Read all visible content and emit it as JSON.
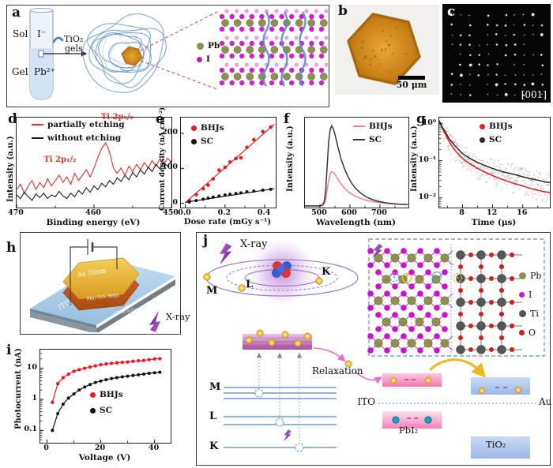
{
  "panels": {
    "a": {
      "letter": "a",
      "sol": "Sol",
      "iodide": "I⁻",
      "tio2": "TiO₂",
      "gels": "gels",
      "gel": "Gel",
      "lead": "Pb²⁺",
      "legend": [
        {
          "label": "Pb",
          "color": "#8f8f52"
        },
        {
          "label": "I",
          "color": "#cc10cc"
        }
      ]
    },
    "b": {
      "letter": "b",
      "scale_bar": "50 μm"
    },
    "c": {
      "letter": "c",
      "zone_axis": "[001]"
    },
    "d": {
      "letter": "d"
    },
    "e": {
      "letter": "e"
    },
    "f": {
      "letter": "f"
    },
    "g": {
      "letter": "g"
    },
    "h": {
      "letter": "h",
      "au_label": "Au 50nm",
      "bhj_label": "PbI₂-TiO₂ BHJs",
      "ito_label": "ITO",
      "substrate_label": "Glass substrate",
      "xray_label": "X-ray"
    },
    "i": {
      "letter": "i"
    },
    "j": {
      "letter": "j",
      "xray_label": "X-ray",
      "shell_k": "K",
      "shell_l": "L",
      "shell_m": "M",
      "level_m": "M",
      "level_l": "L",
      "level_k": "K",
      "relaxation": "Relaxation",
      "ito": "ITO",
      "au": "Au",
      "pbi2": "PbI₂",
      "tio2": "TiO₂",
      "legend": [
        {
          "label": "Pb",
          "color": "#8f8f52"
        },
        {
          "label": "I",
          "color": "#cc10cc"
        },
        {
          "label": "Ti",
          "color": "#555555"
        },
        {
          "label": "O",
          "color": "#cc2020"
        }
      ]
    }
  },
  "chart_data": [
    {
      "id": "d",
      "type": "line",
      "xlabel": "Binding energy (eV)",
      "ylabel": "Intensity (a.u.)",
      "xrange": [
        470,
        450
      ],
      "yrange": [
        0,
        1
      ],
      "x_start": 470,
      "x_step": -0.5,
      "xticks": [
        {
          "v": 470,
          "t": "470"
        },
        {
          "v": 460,
          "t": "460"
        },
        {
          "v": 450,
          "t": "450"
        }
      ],
      "xminor": [
        465,
        455
      ],
      "annotations": [
        {
          "x": 464.3,
          "y": 0.47,
          "t": "Ti 2p₁/₂",
          "color": "#e03030"
        },
        {
          "x": 456.9,
          "y": 0.95,
          "t": "Ti 2p₃/₂",
          "color": "#e03030"
        }
      ],
      "legend_style": "line",
      "series": [
        {
          "name": "partially etching",
          "color": "#e03030",
          "lw": 1.1,
          "values": [
            0.2,
            0.26,
            0.16,
            0.24,
            0.3,
            0.2,
            0.28,
            0.22,
            0.32,
            0.24,
            0.3,
            0.36,
            0.28,
            0.34,
            0.26,
            0.38,
            0.3,
            0.36,
            0.42,
            0.34,
            0.44,
            0.56,
            0.66,
            0.72,
            0.62,
            0.44,
            0.38,
            0.44,
            0.36,
            0.46,
            0.4,
            0.48,
            0.42,
            0.5,
            0.44,
            0.52,
            0.46,
            0.54,
            0.48,
            0.55,
            0.5
          ]
        },
        {
          "name": "without etching",
          "color": "#1a1a1a",
          "lw": 1.1,
          "values": [
            0.14,
            0.1,
            0.17,
            0.12,
            0.08,
            0.15,
            0.11,
            0.16,
            0.1,
            0.14,
            0.12,
            0.18,
            0.13,
            0.1,
            0.16,
            0.12,
            0.19,
            0.15,
            0.22,
            0.17,
            0.24,
            0.2,
            0.27,
            0.23,
            0.3,
            0.26,
            0.33,
            0.29,
            0.36,
            0.31,
            0.39,
            0.34,
            0.42,
            0.37,
            0.45,
            0.4,
            0.48,
            0.43,
            0.5,
            0.46,
            0.52
          ]
        }
      ]
    },
    {
      "id": "e",
      "type": "scatter",
      "xlabel": "Dose rate (mGy s⁻¹)",
      "ylabel": "Current density (nA cm⁻²)",
      "xrange": [
        -0.022,
        0.455
      ],
      "yrange": [
        -12,
        245
      ],
      "xticks": [
        {
          "v": 0,
          "t": "0.0"
        },
        {
          "v": 0.2,
          "t": "0.2"
        },
        {
          "v": 0.4,
          "t": "0.4"
        }
      ],
      "xminor": [
        0.1,
        0.3
      ],
      "yticks": [
        {
          "v": 0,
          "t": "0"
        },
        {
          "v": 100,
          "t": "100"
        },
        {
          "v": 200,
          "t": "200"
        }
      ],
      "legend_style": "dot",
      "series": [
        {
          "name": "BHJs",
          "color": "#e81c24",
          "draw": "dots",
          "r": 2.3,
          "fit": [
            [
              0,
              2
            ],
            [
              0.448,
              226
            ]
          ],
          "points": [
            [
              0.02,
              8
            ],
            [
              0.055,
              25
            ],
            [
              0.09,
              42
            ],
            [
              0.115,
              52
            ],
            [
              0.14,
              70
            ],
            [
              0.17,
              95
            ],
            [
              0.2,
              103
            ],
            [
              0.225,
              118
            ],
            [
              0.255,
              128
            ],
            [
              0.28,
              130
            ],
            [
              0.31,
              160
            ],
            [
              0.345,
              182
            ],
            [
              0.39,
              205
            ],
            [
              0.43,
              218
            ]
          ]
        },
        {
          "name": "SC",
          "color": "#111111",
          "draw": "dots",
          "r": 2,
          "fit": [
            [
              0,
              3
            ],
            [
              0.448,
              42
            ]
          ],
          "points": [
            [
              0.02,
              4
            ],
            [
              0.055,
              8
            ],
            [
              0.09,
              12
            ],
            [
              0.115,
              15
            ],
            [
              0.14,
              18
            ],
            [
              0.17,
              21
            ],
            [
              0.2,
              24
            ],
            [
              0.225,
              26
            ],
            [
              0.255,
              28
            ],
            [
              0.28,
              30
            ],
            [
              0.31,
              33
            ],
            [
              0.345,
              35
            ],
            [
              0.39,
              38
            ],
            [
              0.43,
              40
            ]
          ]
        }
      ]
    },
    {
      "id": "f",
      "type": "line",
      "xlabel": "Wavelength (nm)",
      "ylabel": "Intensity (a.u.)",
      "xrange": [
        450,
        795
      ],
      "yrange": [
        0,
        1.1
      ],
      "xticks": [
        {
          "v": 500,
          "t": "500"
        },
        {
          "v": 600,
          "t": "600"
        },
        {
          "v": 700,
          "t": "700"
        }
      ],
      "xminor": [
        550,
        650,
        750
      ],
      "legend_style": "line",
      "series": [
        {
          "name": "BHJs",
          "color": "#ef8086",
          "lw": 1.5,
          "points": [
            [
              450,
              0.018
            ],
            [
              480,
              0.018
            ],
            [
              500,
              0.018
            ],
            [
              508,
              0.025
            ],
            [
              514,
              0.045
            ],
            [
              519,
              0.1
            ],
            [
              524,
              0.22
            ],
            [
              529,
              0.33
            ],
            [
              534,
              0.41
            ],
            [
              539,
              0.44
            ],
            [
              545,
              0.425
            ],
            [
              551,
              0.4
            ],
            [
              560,
              0.345
            ],
            [
              570,
              0.29
            ],
            [
              580,
              0.245
            ],
            [
              592,
              0.2
            ],
            [
              605,
              0.165
            ],
            [
              620,
              0.135
            ],
            [
              640,
              0.105
            ],
            [
              660,
              0.085
            ],
            [
              680,
              0.07
            ],
            [
              700,
              0.06
            ],
            [
              725,
              0.05
            ],
            [
              750,
              0.043
            ],
            [
              770,
              0.039
            ],
            [
              793,
              0.036
            ]
          ]
        },
        {
          "name": "SC",
          "color": "#383838",
          "lw": 1.5,
          "points": [
            [
              450,
              0.02
            ],
            [
              480,
              0.02
            ],
            [
              500,
              0.02
            ],
            [
              508,
              0.03
            ],
            [
              514,
              0.07
            ],
            [
              519,
              0.2
            ],
            [
              524,
              0.5
            ],
            [
              529,
              0.8
            ],
            [
              534,
              0.95
            ],
            [
              539,
              1.0
            ],
            [
              545,
              0.96
            ],
            [
              551,
              0.88
            ],
            [
              560,
              0.74
            ],
            [
              570,
              0.6
            ],
            [
              580,
              0.49
            ],
            [
              592,
              0.39
            ],
            [
              605,
              0.3
            ],
            [
              620,
              0.23
            ],
            [
              640,
              0.165
            ],
            [
              660,
              0.12
            ],
            [
              680,
              0.092
            ],
            [
              700,
              0.072
            ],
            [
              725,
              0.055
            ],
            [
              750,
              0.045
            ],
            [
              770,
              0.04
            ],
            [
              793,
              0.036
            ]
          ]
        }
      ]
    },
    {
      "id": "g",
      "type": "line",
      "xlabel": "Time (μs)",
      "ylabel": "Intensity (a.u.)",
      "xrange": [
        4.9,
        19.6
      ],
      "yrange": [
        0.0055,
        1.45
      ],
      "ylog": true,
      "xticks": [
        {
          "v": 8,
          "t": "8"
        },
        {
          "v": 12,
          "t": "12"
        },
        {
          "v": 16,
          "t": "16"
        }
      ],
      "xminor": [
        6,
        10,
        14,
        18
      ],
      "yticks": [
        {
          "v": 1,
          "t": "10⁰"
        },
        {
          "v": 0.1,
          "t": "10⁻¹"
        },
        {
          "v": 0.01,
          "t": "10⁻²"
        }
      ],
      "legend_style": "dot",
      "series": [
        {
          "name": "BHJs",
          "color": "#e81c24",
          "lw": 1.5,
          "cloud": true,
          "points": [
            [
              4.9,
              1.2
            ],
            [
              5.3,
              0.75
            ],
            [
              5.8,
              0.48
            ],
            [
              6.3,
              0.3
            ],
            [
              7,
              0.19
            ],
            [
              8,
              0.115
            ],
            [
              9,
              0.082
            ],
            [
              10,
              0.062
            ],
            [
              11,
              0.049
            ],
            [
              12,
              0.04
            ],
            [
              13,
              0.033
            ],
            [
              14,
              0.028
            ],
            [
              15,
              0.024
            ],
            [
              16,
              0.021
            ],
            [
              17,
              0.018
            ],
            [
              18,
              0.016
            ],
            [
              19,
              0.0145
            ],
            [
              19.6,
              0.014
            ]
          ]
        },
        {
          "name": "SC",
          "color": "#2a2a2a",
          "lw": 1.5,
          "cloud": true,
          "points": [
            [
              4.9,
              1.2
            ],
            [
              5.3,
              0.8
            ],
            [
              5.8,
              0.55
            ],
            [
              6.3,
              0.37
            ],
            [
              7,
              0.25
            ],
            [
              8,
              0.155
            ],
            [
              9,
              0.115
            ],
            [
              10,
              0.09
            ],
            [
              11,
              0.073
            ],
            [
              12,
              0.062
            ],
            [
              13,
              0.053
            ],
            [
              14,
              0.047
            ],
            [
              15,
              0.042
            ],
            [
              16,
              0.037
            ],
            [
              17,
              0.033
            ],
            [
              18,
              0.03
            ],
            [
              19,
              0.027
            ],
            [
              19.6,
              0.026
            ]
          ]
        }
      ]
    },
    {
      "id": "i",
      "type": "scatter-line",
      "xlabel": "Voltage (V)",
      "ylabel": "Photocurrent (nA)",
      "xrange": [
        -2.5,
        46
      ],
      "yrange": [
        0.04,
        40
      ],
      "ylog": true,
      "xticks": [
        {
          "v": 0,
          "t": "0"
        },
        {
          "v": 20,
          "t": "20"
        },
        {
          "v": 40,
          "t": "40"
        }
      ],
      "xminor": [
        10,
        30
      ],
      "yticks": [
        {
          "v": 10,
          "t": "10"
        },
        {
          "v": 1,
          "t": "1"
        },
        {
          "v": 0.1,
          "t": "0.1"
        }
      ],
      "legend_style": "dot",
      "series": [
        {
          "name": "BHJs",
          "color": "#e81c24",
          "draw": "linedots",
          "r": 2.2,
          "lw": 1.2,
          "points": [
            [
              2,
              0.8
            ],
            [
              4,
              3.2
            ],
            [
              6,
              5
            ],
            [
              8,
              6.5
            ],
            [
              10,
              8
            ],
            [
              12,
              9
            ],
            [
              14,
              10
            ],
            [
              16,
              11
            ],
            [
              18,
              12
            ],
            [
              20,
              13
            ],
            [
              22,
              13.8
            ],
            [
              24,
              14.5
            ],
            [
              26,
              15
            ],
            [
              28,
              15.5
            ],
            [
              30,
              16
            ],
            [
              32,
              16.8
            ],
            [
              34,
              17.5
            ],
            [
              36,
              18
            ],
            [
              38,
              19
            ],
            [
              40,
              20
            ],
            [
              42,
              20.5
            ]
          ]
        },
        {
          "name": "SC",
          "color": "#111111",
          "draw": "linedots",
          "r": 2,
          "lw": 1.2,
          "points": [
            [
              2,
              0.1
            ],
            [
              4,
              0.35
            ],
            [
              6,
              0.7
            ],
            [
              8,
              1.1
            ],
            [
              10,
              1.5
            ],
            [
              12,
              2.0
            ],
            [
              14,
              2.5
            ],
            [
              16,
              3.0
            ],
            [
              18,
              3.5
            ],
            [
              20,
              3.9
            ],
            [
              22,
              4.3
            ],
            [
              24,
              4.7
            ],
            [
              26,
              5.0
            ],
            [
              28,
              5.3
            ],
            [
              30,
              5.6
            ],
            [
              32,
              5.9
            ],
            [
              34,
              6.2
            ],
            [
              36,
              6.5
            ],
            [
              38,
              6.9
            ],
            [
              40,
              7.2
            ],
            [
              42,
              7.5
            ]
          ]
        }
      ]
    }
  ]
}
